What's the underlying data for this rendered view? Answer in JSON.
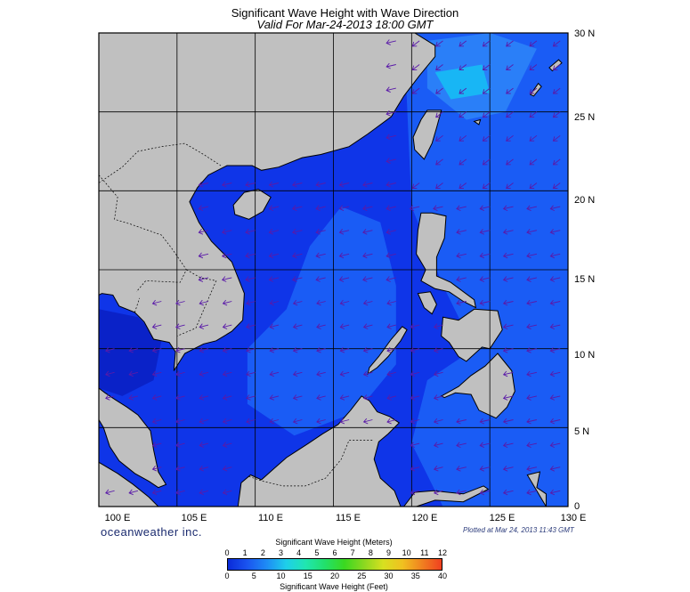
{
  "title": "Significant Wave Height with Wave Direction",
  "subtitle": "Valid For Mar-24-2013 18:00 GMT",
  "lat_labels": [
    "30 N",
    "25 N",
    "20 N",
    "15 N",
    "10 N",
    "5 N",
    "0"
  ],
  "lon_labels": [
    "100 E",
    "105 E",
    "110 E",
    "115 E",
    "120 E",
    "125 E",
    "130 E"
  ],
  "brand": "oceanweather inc.",
  "plotted": "Plotted at Mar 24, 2013 11:43 GMT",
  "colorbar": {
    "title_meters": "Significant Wave Height (Meters)",
    "title_feet": "Significant Wave Height (Feet)",
    "meters_ticks": [
      "0",
      "1",
      "2",
      "3",
      "4",
      "5",
      "6",
      "7",
      "8",
      "9",
      "10",
      "11",
      "12"
    ],
    "feet_ticks": [
      "0",
      "5",
      "10",
      "15",
      "20",
      "25",
      "30",
      "35",
      "40"
    ],
    "colors": [
      "#0a2ad8",
      "#1a55f0",
      "#1e8cf5",
      "#1ecfea",
      "#20e6b0",
      "#22e06a",
      "#3ad820",
      "#8ad820",
      "#d8e020",
      "#f0c020",
      "#f08020",
      "#f04020"
    ]
  },
  "map": {
    "extent": {
      "lon_min": 100,
      "lon_max": 130,
      "lat_min": 0,
      "lat_max": 30
    },
    "land_color": "#c0c0c0",
    "sea_colors": {
      "deep": "#0f35e8",
      "mid": "#1a5cf5",
      "light": "#2a7ff8",
      "bright": "#18b6f5"
    }
  }
}
